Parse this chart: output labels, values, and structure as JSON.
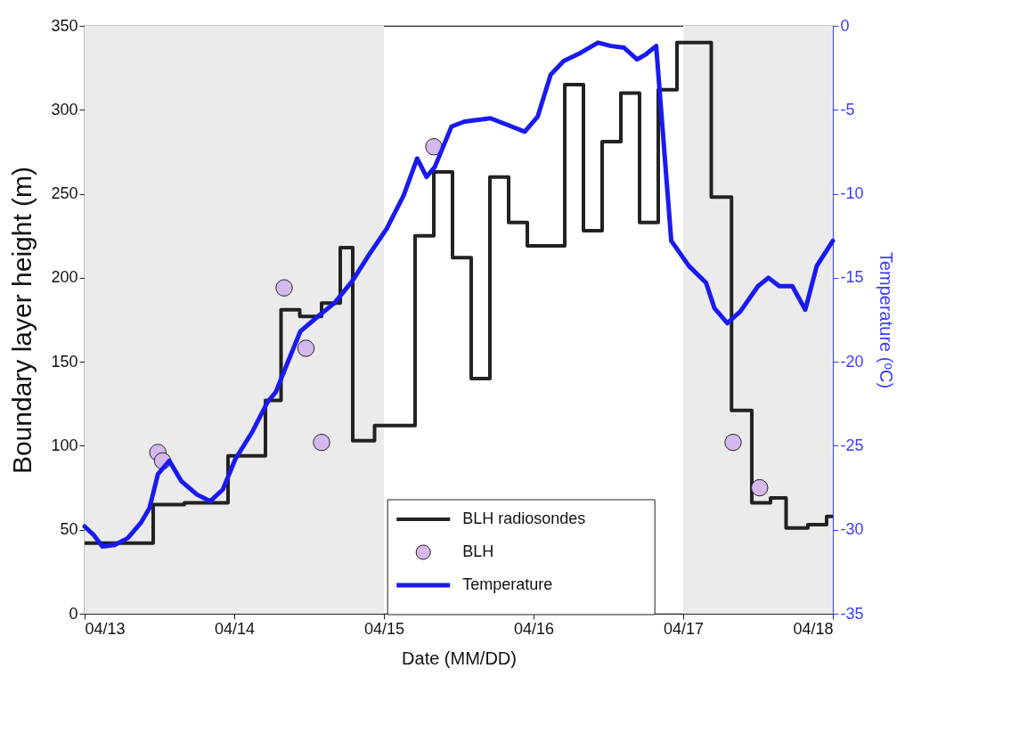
{
  "chart_data": {
    "type": "line",
    "xlabel": "Date (MM/DD)",
    "ylabel": "Boundary layer height (m)",
    "y2label": "Temperature (ᵒC)",
    "xlim": [
      "--04-13",
      "--04-18"
    ],
    "xticks": [
      {
        "value": "--04-13",
        "label": "04/13"
      },
      {
        "value": "--04-14",
        "label": "04/14"
      },
      {
        "value": "--04-15",
        "label": "04/15"
      },
      {
        "value": "--04-16",
        "label": "04/16"
      },
      {
        "value": "--04-17",
        "label": "04/17"
      },
      {
        "value": "--04-18",
        "label": "04/18"
      }
    ],
    "ylim": [
      0,
      350
    ],
    "yticks": [
      0,
      50,
      100,
      150,
      200,
      250,
      300,
      350
    ],
    "y2lim": [
      -35,
      0
    ],
    "y2ticks": [
      -35,
      -30,
      -25,
      -20,
      -15,
      -10,
      -5,
      0
    ],
    "legend": "bottom",
    "bands": [
      {
        "axis": "x",
        "from": "--04-13",
        "to": "--04-15",
        "color": "#ebebeb"
      },
      {
        "axis": "x",
        "from": "--04-17",
        "to": "--04-18",
        "color": "#ebebeb"
      }
    ],
    "series": [
      {
        "name": "BLH radiosondes",
        "type": "step",
        "color": "#222222",
        "x": [
          "--04-13T00:00",
          "--04-13T11:00",
          "--04-13T16:00",
          "--04-13T23:00",
          "--04-14T05:00",
          "--04-14T07:30",
          "--04-14T10:30",
          "--04-14T14:00",
          "--04-14T17:00",
          "--04-14T19:00",
          "--04-14T22:30",
          "--04-15T05:00",
          "--04-15T08:00",
          "--04-15T11:00",
          "--04-15T14:00",
          "--04-15T17:00",
          "--04-15T20:00",
          "--04-15T23:00",
          "--04-16T05:00",
          "--04-16T08:00",
          "--04-16T11:00",
          "--04-16T14:00",
          "--04-16T17:00",
          "--04-16T20:00",
          "--04-16T23:00",
          "--04-17T04:30",
          "--04-17T07:45",
          "--04-17T11:00",
          "--04-17T14:00",
          "--04-17T16:30",
          "--04-17T20:00",
          "--04-17T23:00",
          "--04-18T00:00"
        ],
        "values": [
          42,
          65,
          66,
          94,
          127,
          181,
          177,
          185,
          218,
          103,
          112,
          225,
          263,
          212,
          140,
          260,
          233,
          219,
          315,
          228,
          281,
          310,
          233,
          312,
          340,
          248,
          121,
          66,
          69,
          51,
          53,
          58,
          58
        ]
      },
      {
        "name": "BLH",
        "type": "scatter",
        "marker": "circle",
        "color": "#d4b8ee",
        "x": [
          "--04-13T11:45",
          "--04-13T12:30",
          "--04-14T08:00",
          "--04-14T11:30",
          "--04-14T14:00",
          "--04-15T08:00",
          "--04-17T08:00",
          "--04-17T12:15"
        ],
        "values": [
          96,
          91,
          194,
          158,
          102,
          278,
          102,
          75
        ]
      },
      {
        "name": "Temperature",
        "type": "line",
        "axis": "y2",
        "color": "#1a1af0",
        "x": [
          "--04-13T00:00",
          "--04-13T01:25",
          "--04-13T02:50",
          "--04-13T04:50",
          "--04-13T06:55",
          "--04-13T09:00",
          "--04-13T10:25",
          "--04-13T11:45",
          "--04-13T13:35",
          "--04-13T15:30",
          "--04-13T18:00",
          "--04-13T20:10",
          "--04-13T22:10",
          "--04-14T00:10",
          "--04-14T03:00",
          "--04-14T05:20",
          "--04-14T06:40",
          "--04-14T08:30",
          "--04-14T10:35",
          "--04-14T13:25",
          "--04-14T16:05",
          "--04-14T18:55",
          "--04-14T21:40",
          "--04-15T00:25",
          "--04-15T03:10",
          "--04-15T05:20",
          "--04-15T06:50",
          "--04-15T08:10",
          "--04-15T10:50",
          "--04-15T12:55",
          "--04-15T17:05",
          "--04-15T19:50",
          "--04-15T22:35",
          "--04-16T00:40",
          "--04-16T02:45",
          "--04-16T04:50",
          "--04-16T07:35",
          "--04-16T10:20",
          "--04-16T12:25",
          "--04-16T14:30",
          "--04-16T16:35",
          "--04-16T18:00",
          "--04-16T19:40",
          "--04-16T20:45",
          "--04-16T22:05",
          "--04-17T00:55",
          "--04-17T03:40",
          "--04-17T05:00",
          "--04-17T07:05",
          "--04-17T09:10",
          "--04-17T12:00",
          "--04-17T13:40",
          "--04-17T15:25",
          "--04-17T17:30",
          "--04-17T19:35",
          "--04-17T21:25",
          "--04-18T00:00"
        ],
        "values": [
          -29.8,
          -30.3,
          -31,
          -30.9,
          -30.5,
          -29.6,
          -28.7,
          -26.7,
          -25.9,
          -27.1,
          -27.9,
          -28.3,
          -27.6,
          -25.8,
          -24.1,
          -22.4,
          -21.8,
          -20.1,
          -18.2,
          -17.3,
          -16.5,
          -15.2,
          -13.6,
          -12.1,
          -10.1,
          -7.9,
          -9,
          -8.4,
          -6,
          -5.7,
          -5.5,
          -5.9,
          -6.3,
          -5.4,
          -2.9,
          -2.1,
          -1.6,
          -1,
          -1.2,
          -1.3,
          -2,
          -1.7,
          -1.2,
          -6.4,
          -12.8,
          -14.3,
          -15.3,
          -16.8,
          -17.7,
          -17,
          -15.5,
          -15,
          -15.5,
          -15.5,
          -16.9,
          -14.3,
          -12.8
        ]
      }
    ]
  }
}
